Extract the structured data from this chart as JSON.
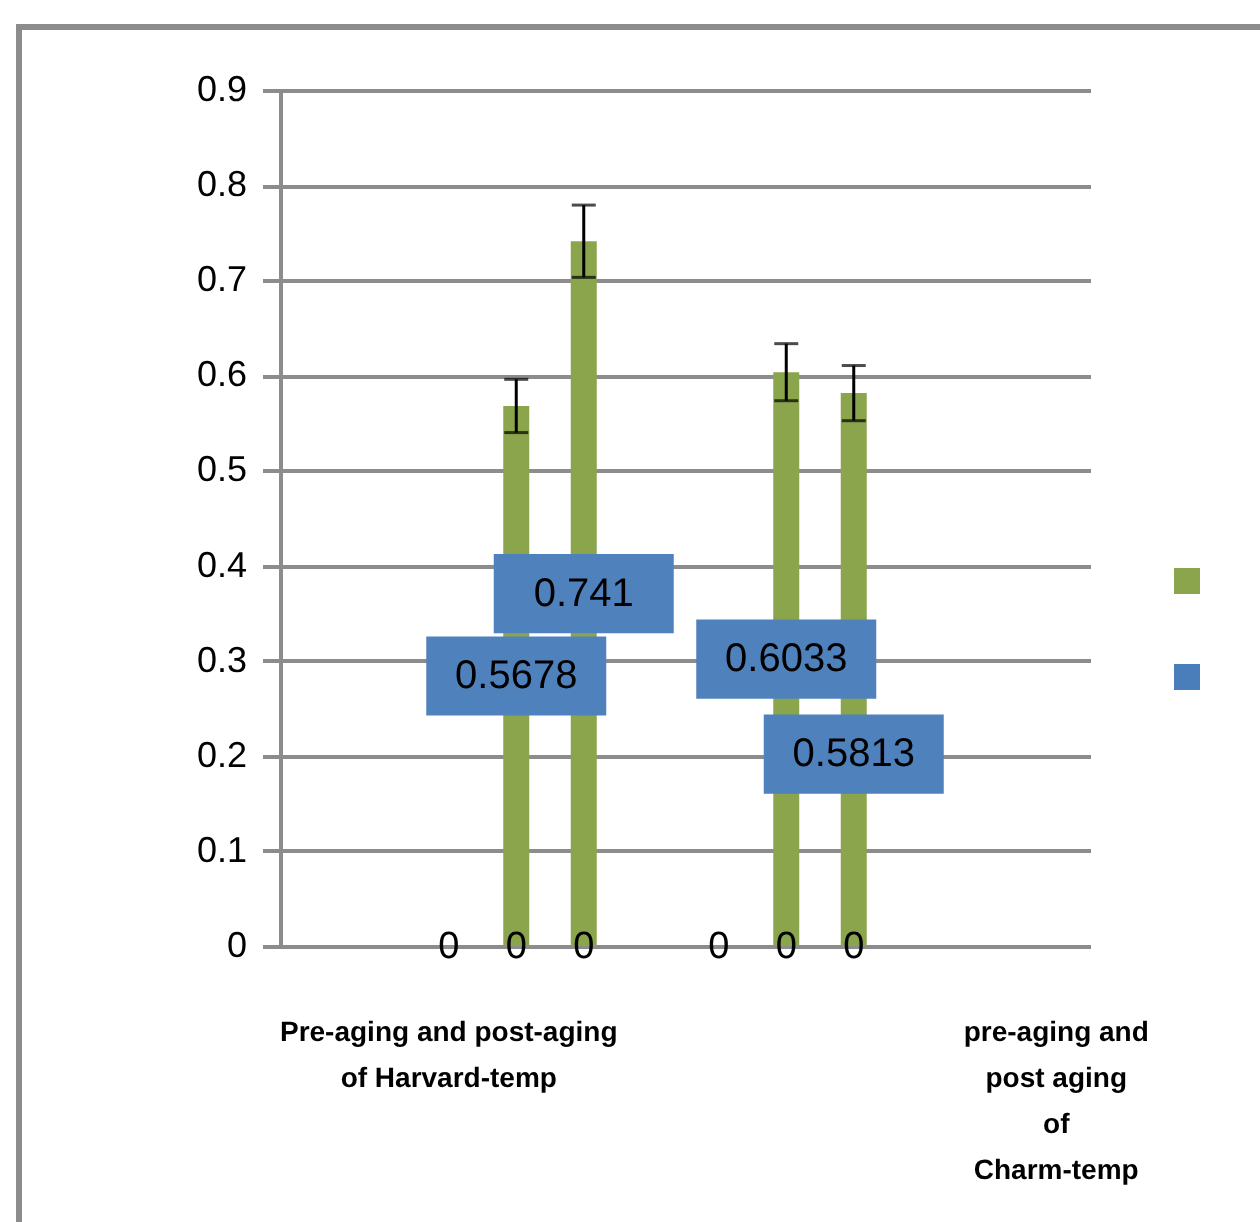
{
  "chart_data": {
    "type": "bar",
    "categories": [
      null,
      null,
      "Pre-aging and post-aging\n\nof Harvard-temp",
      null,
      null,
      null,
      null,
      null,
      null,
      null,
      null,
      "pre-aging and\npost aging\nof\nCharm-temp"
    ],
    "series": [
      {
        "color": "#8ba54d",
        "values": [
          null,
          null,
          null,
          0.5678,
          0.741,
          null,
          null,
          0.6033,
          0.5813,
          null,
          null,
          null
        ],
        "errors": [
          null,
          null,
          null,
          0.028,
          0.038,
          null,
          null,
          0.03,
          0.029,
          null,
          null,
          null
        ],
        "value_labels": [
          null,
          null,
          null,
          "0.5678",
          "0.741",
          null,
          null,
          "0.6033",
          "0.5813",
          null,
          null,
          null
        ]
      },
      {
        "color": "#4a7ebb",
        "values": [
          null,
          null,
          0,
          0,
          0,
          null,
          0,
          0,
          0,
          null,
          null,
          null
        ],
        "value_labels": [
          null,
          null,
          "0",
          "0",
          "0",
          null,
          "0",
          "0",
          "0",
          null,
          null,
          null
        ]
      }
    ],
    "ylim": [
      0,
      0.9
    ],
    "yticks": [
      0,
      0.1,
      0.2,
      0.3,
      0.4,
      0.5,
      0.6,
      0.7,
      0.8,
      0.9
    ],
    "grid": "y"
  }
}
